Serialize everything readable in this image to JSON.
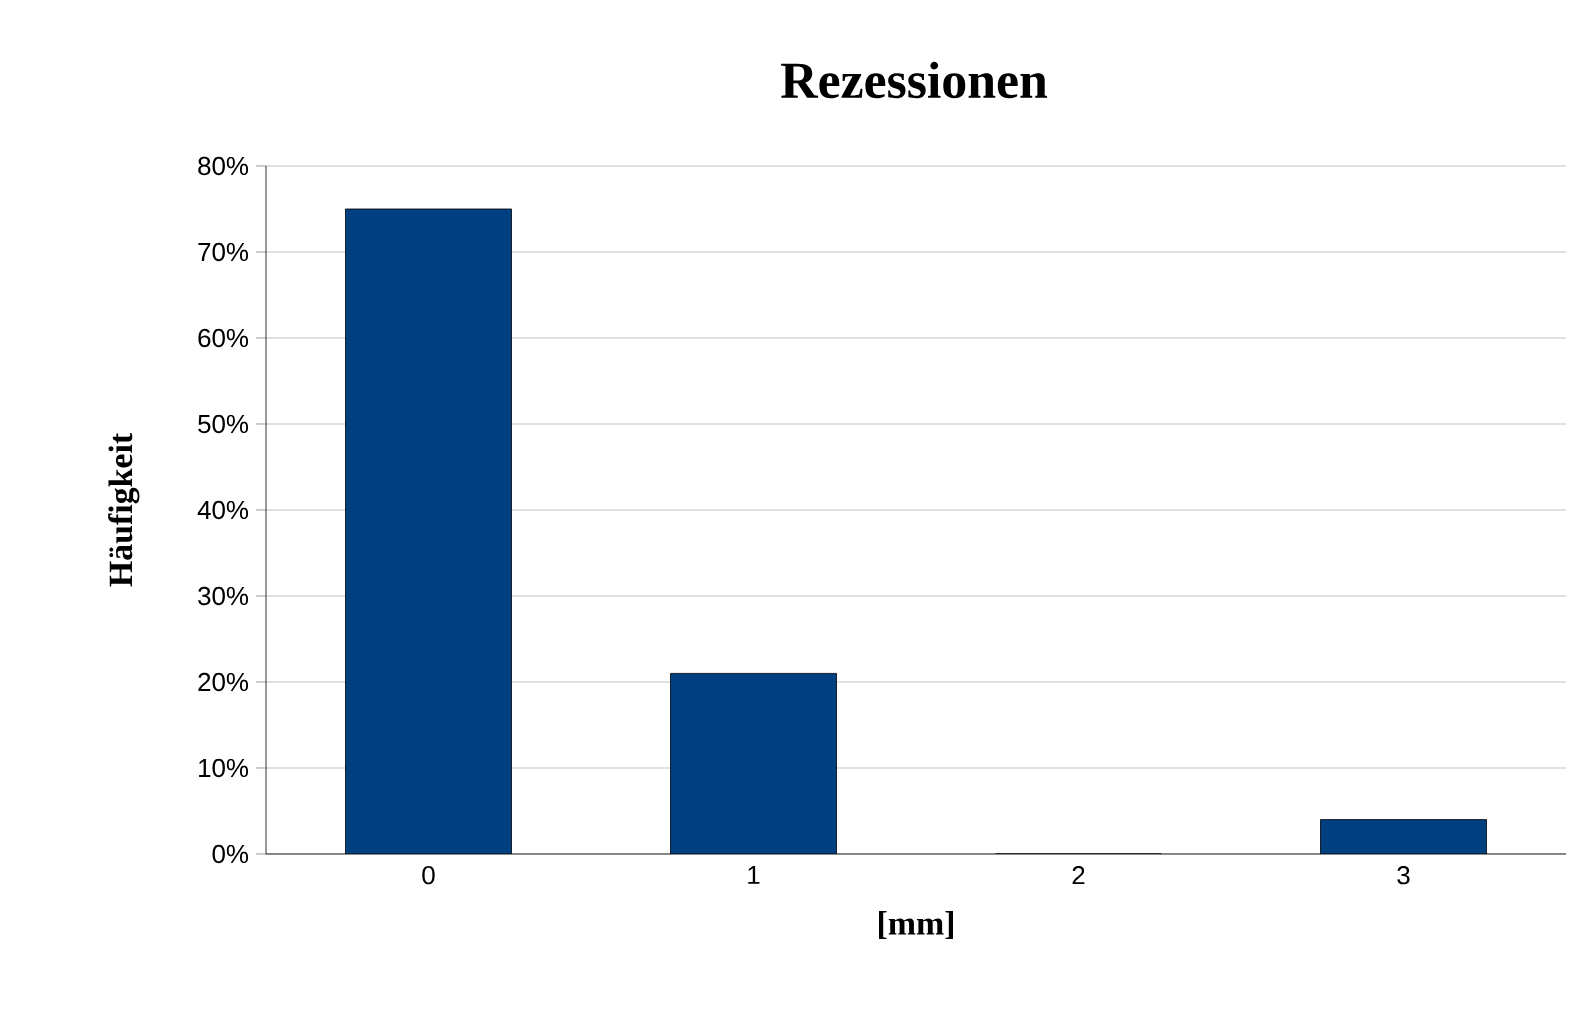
{
  "chart_data": {
    "type": "bar",
    "title": "Rezessionen",
    "xlabel": "[mm]",
    "ylabel": "Häufigkeit",
    "categories": [
      "0",
      "1",
      "2",
      "3"
    ],
    "values": [
      75,
      21,
      0,
      4
    ],
    "color": "#004080",
    "ylim": [
      0,
      80
    ],
    "yticks": [
      {
        "value": 0,
        "label": "0%"
      },
      {
        "value": 10,
        "label": "10%"
      },
      {
        "value": 20,
        "label": "20%"
      },
      {
        "value": 30,
        "label": "30%"
      },
      {
        "value": 40,
        "label": "40%"
      },
      {
        "value": 50,
        "label": "50%"
      },
      {
        "value": 60,
        "label": "60%"
      },
      {
        "value": 70,
        "label": "70%"
      },
      {
        "value": 80,
        "label": "80%"
      }
    ],
    "grid": "y"
  }
}
